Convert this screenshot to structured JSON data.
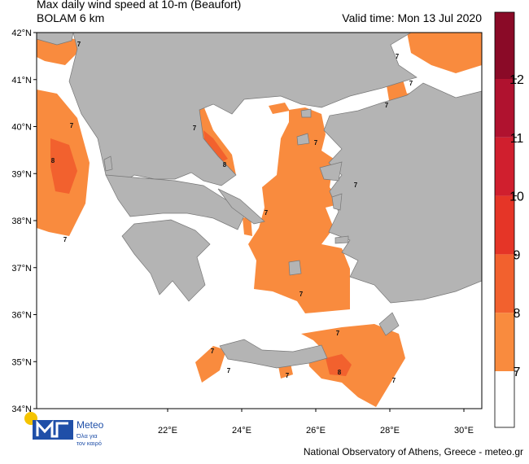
{
  "header": {
    "title": "Max daily wind speed at 10-m (Beaufort)",
    "subtitle": "BOLAM 6 km",
    "valid_time": "Valid time: Mon 13 Jul 2020"
  },
  "map": {
    "lat_ticks": [
      {
        "value": 42,
        "label": "42°N"
      },
      {
        "value": 41,
        "label": "41°N"
      },
      {
        "value": 40,
        "label": "40°N"
      },
      {
        "value": 39,
        "label": "39°N"
      },
      {
        "value": 38,
        "label": "38°N"
      },
      {
        "value": 37,
        "label": "37°N"
      },
      {
        "value": 36,
        "label": "36°N"
      },
      {
        "value": 35,
        "label": "35°N"
      },
      {
        "value": 34,
        "label": "34°N"
      }
    ],
    "lon_ticks": [
      {
        "value": 22,
        "label": "22°E"
      },
      {
        "value": 24,
        "label": "24°E"
      },
      {
        "value": 26,
        "label": "26°E"
      },
      {
        "value": 28,
        "label": "28°E"
      },
      {
        "value": 30,
        "label": "30°E"
      }
    ],
    "contour_labels": [
      "7",
      "7",
      "8",
      "7",
      "7",
      "8",
      "7",
      "7",
      "7",
      "7",
      "7",
      "7",
      "7",
      "7",
      "7",
      "7",
      "7",
      "8",
      "7"
    ]
  },
  "colorbar": {
    "ticks": [
      7,
      8,
      9,
      10,
      11,
      12
    ],
    "colors": [
      "#ffffff",
      "#f98b3e",
      "#f2612e",
      "#e53527",
      "#d01f2e",
      "#b0122f",
      "#8a0a27"
    ]
  },
  "logo": {
    "name": "Meteo",
    "tagline_1": "Όλα για",
    "tagline_2": "τον καιρό"
  },
  "footer": {
    "credit": "National Observatory of Athens, Greece - meteo.gr"
  }
}
